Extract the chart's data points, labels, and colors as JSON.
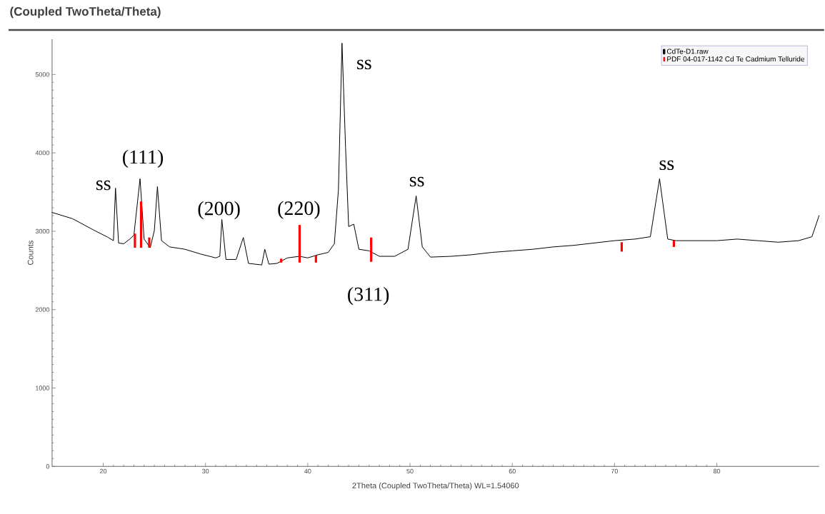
{
  "chart_data": {
    "type": "line",
    "title": "(Coupled TwoTheta/Theta)",
    "xlabel": "2Theta (Coupled TwoTheta/Theta) WL=1.54060",
    "ylabel": "Counts",
    "xlim": [
      15,
      90
    ],
    "ylim": [
      0,
      5450
    ],
    "xticks": [
      20,
      30,
      40,
      50,
      60,
      70,
      80
    ],
    "yticks": [
      0,
      1000,
      2000,
      3000,
      4000,
      5000
    ],
    "legend": "top right",
    "grid": false,
    "series": [
      {
        "name": "CdTe-D1.raw",
        "color": "#000000",
        "x": [
          15,
          17,
          19,
          20.5,
          21.0,
          21.2,
          21.5,
          22,
          22.6,
          23.0,
          23.6,
          24.0,
          24.6,
          25.0,
          25.3,
          25.7,
          26.5,
          28,
          29.5,
          31,
          31.4,
          31.6,
          32.0,
          33,
          33.7,
          34.2,
          35.5,
          35.8,
          36.2,
          37,
          38,
          39.2,
          40,
          41,
          42,
          42.6,
          43.0,
          43.35,
          43.7,
          44.0,
          44.5,
          45,
          46,
          47,
          48.5,
          49.8,
          50.6,
          51.2,
          52,
          54,
          56,
          58,
          60,
          62,
          64,
          66,
          68,
          70,
          72,
          73.5,
          74.4,
          75.2,
          76,
          78,
          80,
          82,
          84,
          86,
          88,
          89.3,
          90
        ],
        "values": [
          3240,
          3160,
          3020,
          2920,
          2880,
          3550,
          2850,
          2840,
          2900,
          2950,
          3670,
          2900,
          2790,
          3010,
          3570,
          2880,
          2800,
          2770,
          2710,
          2660,
          2680,
          3150,
          2640,
          2640,
          2920,
          2590,
          2570,
          2770,
          2580,
          2590,
          2660,
          2680,
          2660,
          2700,
          2730,
          2840,
          3530,
          5400,
          4060,
          3060,
          3090,
          2770,
          2750,
          2680,
          2680,
          2770,
          3450,
          2800,
          2670,
          2680,
          2700,
          2730,
          2750,
          2770,
          2800,
          2820,
          2850,
          2880,
          2900,
          2930,
          3670,
          2900,
          2880,
          2880,
          2880,
          2900,
          2880,
          2860,
          2880,
          2930,
          3200
        ]
      },
      {
        "name": "PDF 04-017-1142 Cd Te Cadmium Telluride",
        "type": "bar",
        "color": "#ff0000",
        "x": [
          23.1,
          23.7,
          24.5,
          37.4,
          39.2,
          40.8,
          46.2,
          70.7,
          75.8
        ],
        "base": [
          2790,
          2790,
          2790,
          2600,
          2600,
          2600,
          2610,
          2740,
          2800
        ],
        "values": [
          180,
          590,
          130,
          50,
          480,
          90,
          310,
          120,
          80
        ]
      }
    ],
    "annotations": [
      {
        "text": "ss",
        "x": 21.2,
        "y": 3550
      },
      {
        "text": "(111)",
        "x": 23.6,
        "y": 3670
      },
      {
        "text": "(200)",
        "x": 31.6,
        "y": 3150
      },
      {
        "text": "(220)",
        "x": 39.2,
        "y": 3080
      },
      {
        "text": "ss",
        "x": 43.35,
        "y": 5400
      },
      {
        "text": "(311)",
        "x": 46.2,
        "y": 2920
      },
      {
        "text": "ss",
        "x": 50.6,
        "y": 3450
      },
      {
        "text": "ss",
        "x": 74.4,
        "y": 3670
      }
    ]
  }
}
